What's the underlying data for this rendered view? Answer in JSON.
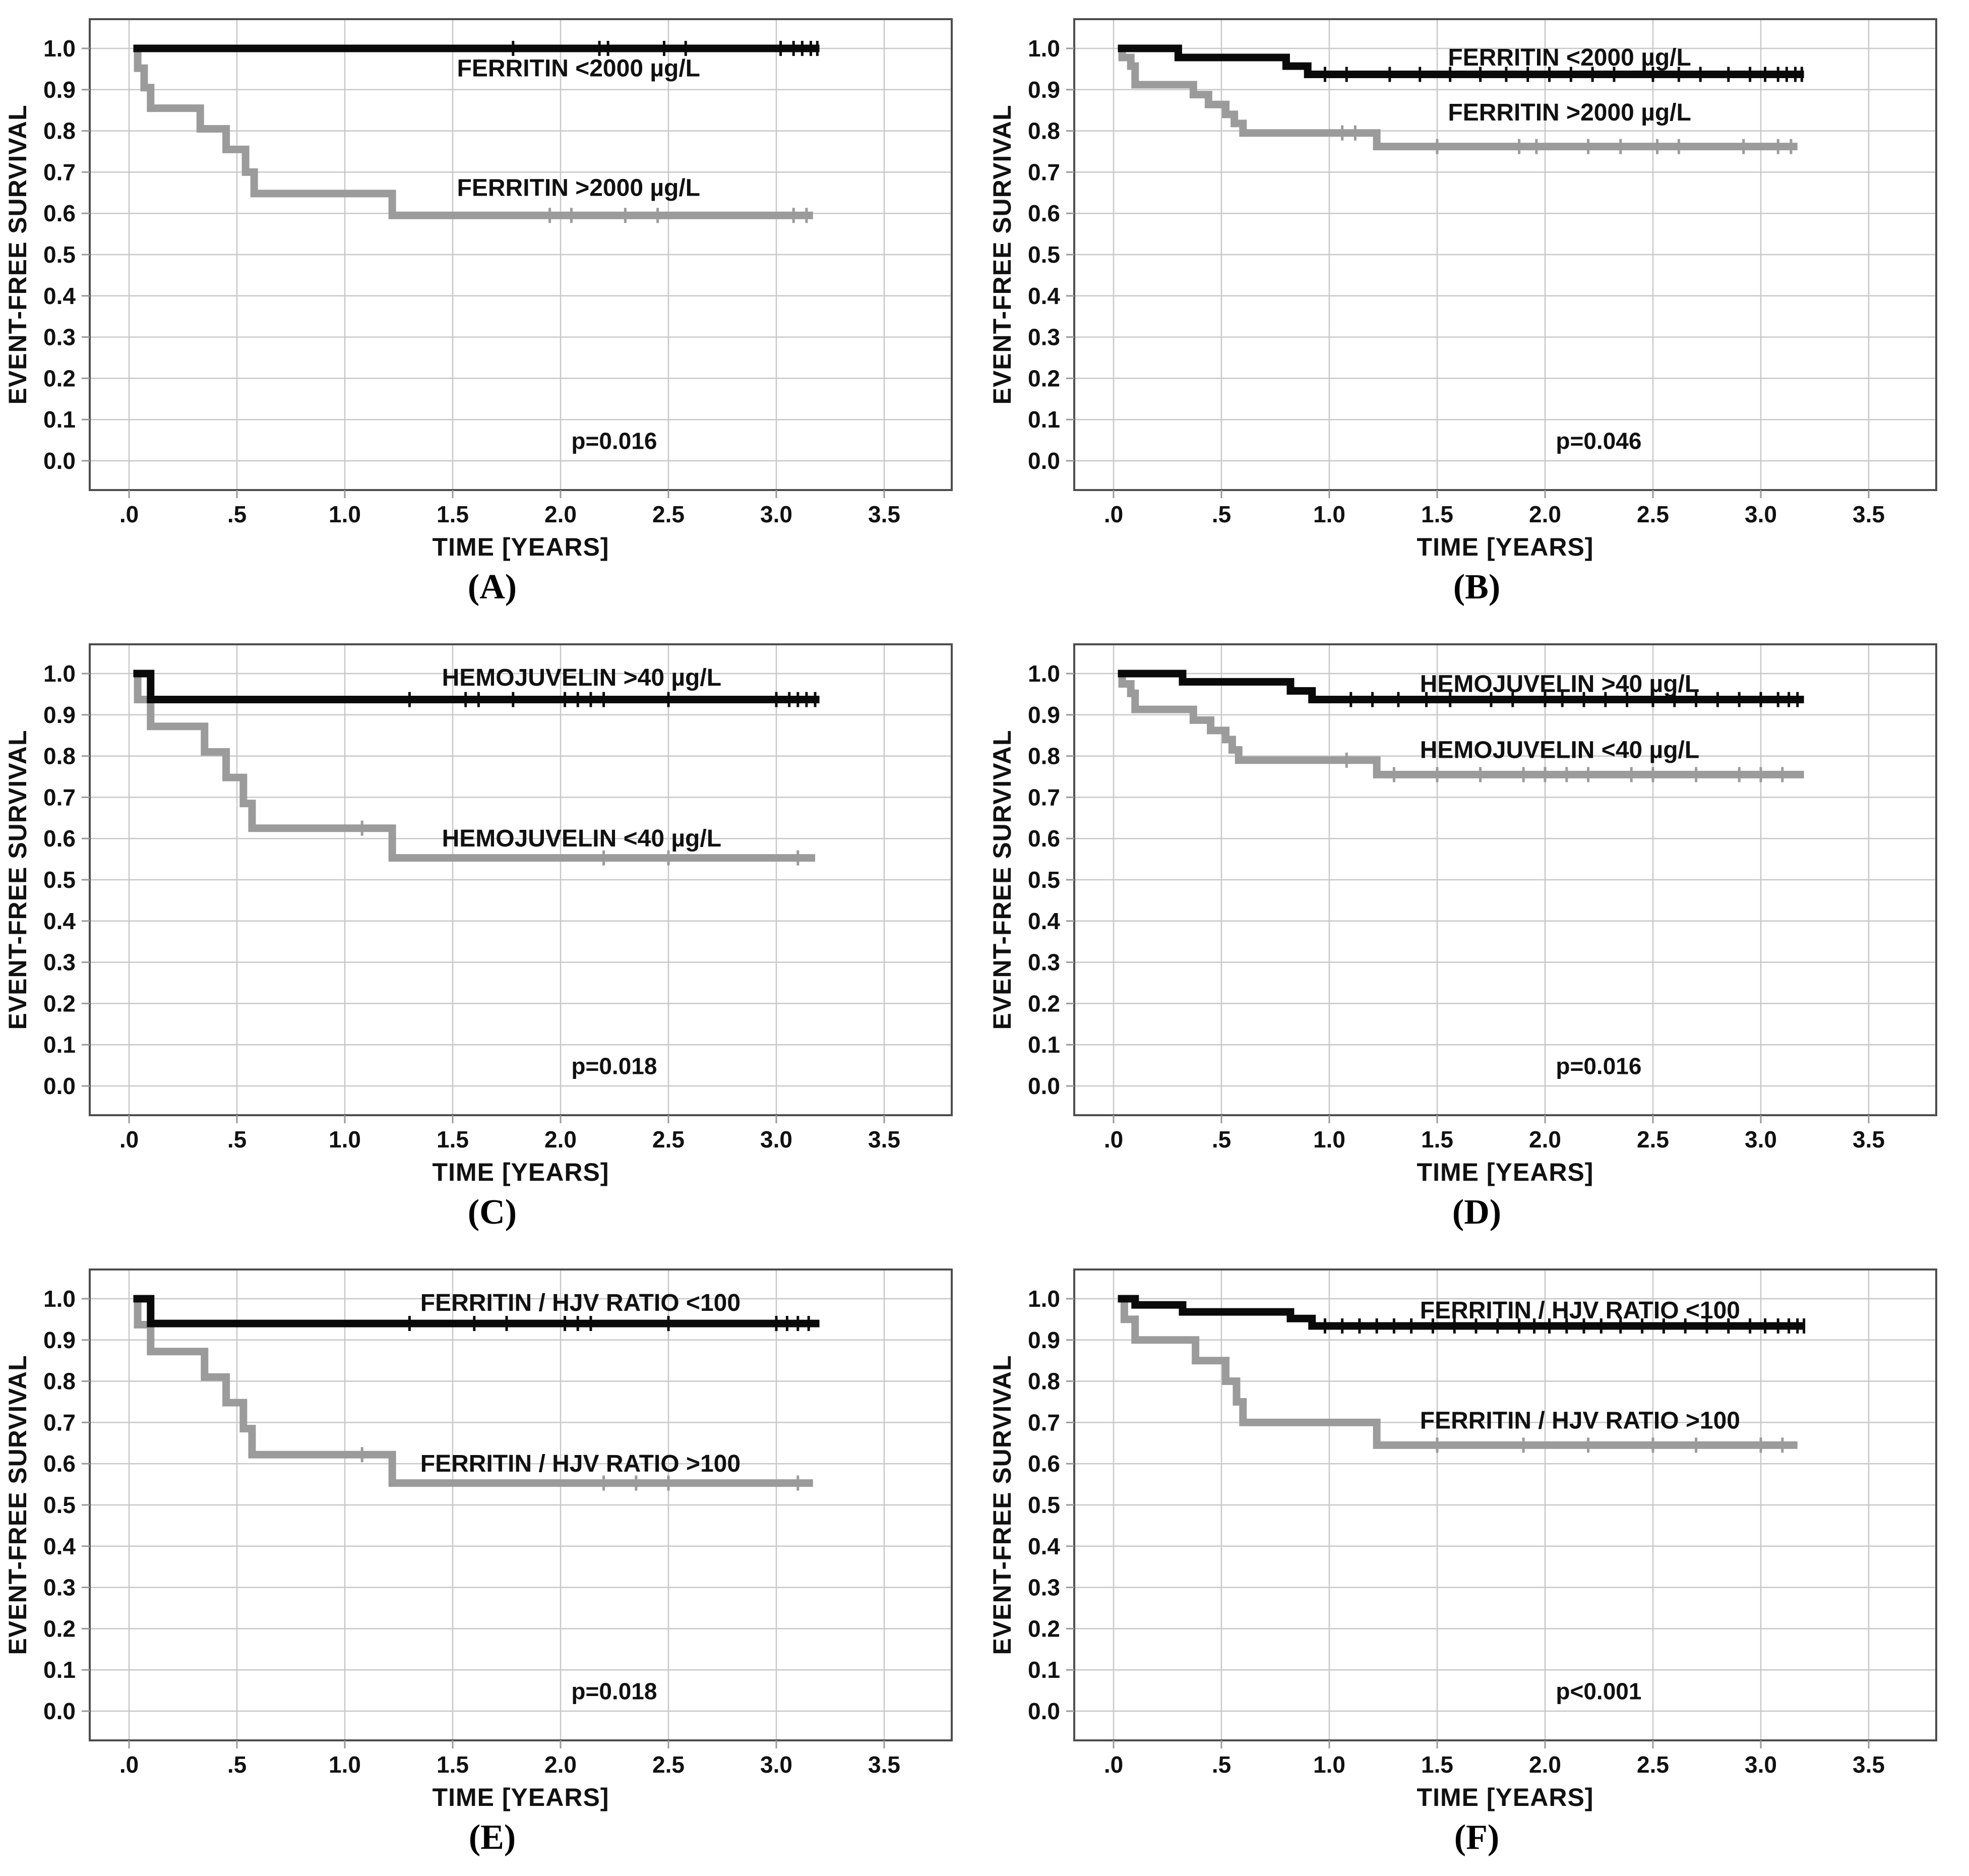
{
  "colors": {
    "black": "#0a0a0a",
    "gray": "#9b9b9b",
    "grid": "#c8c8c8",
    "frame": "#4d4d4d",
    "tick": "#999999",
    "background": "#ffffff"
  },
  "axis": {
    "xlabel": "TIME [YEARS]",
    "ylabel": "EVENT-FREE SURVIVAL",
    "xticks": [
      ".0",
      ".5",
      "1.0",
      "1.5",
      "2.0",
      "2.5",
      "3.0",
      "3.5"
    ],
    "xtick_values": [
      0,
      0.5,
      1.0,
      1.5,
      2.0,
      2.5,
      3.0,
      3.5
    ],
    "yticks": [
      "1.0",
      "0.9",
      "0.8",
      "0.7",
      "0.6",
      "0.5",
      "0.4",
      "0.3",
      "0.2",
      "0.1",
      "0.0"
    ],
    "ytick_values": [
      1.0,
      0.9,
      0.8,
      0.7,
      0.6,
      0.5,
      0.4,
      0.3,
      0.2,
      0.1,
      0.0
    ],
    "xlim": [
      -0.18,
      3.82
    ],
    "ylim": [
      -0.07,
      1.07
    ],
    "grid": true
  },
  "chart_data": [
    {
      "letter": "A",
      "panel_label": "(A)",
      "type": "line",
      "title": "",
      "p_value": "p=0.016",
      "p_pos": [
        2.05,
        0.048
      ],
      "series": [
        {
          "name": "FERRITIN <2000 µg/L",
          "color_key": "black",
          "label_pos": [
            1.52,
            0.952
          ],
          "steps": [
            [
              0.02,
              1.0
            ],
            [
              3.2,
              1.0
            ]
          ],
          "censor_times": [
            1.78,
            2.18,
            2.22,
            2.48,
            2.58,
            3.02,
            3.08,
            3.12,
            3.16,
            3.19
          ]
        },
        {
          "name": "FERRITIN >2000 µg/L",
          "color_key": "gray",
          "label_pos": [
            1.52,
            0.662
          ],
          "steps": [
            [
              0.02,
              1.0
            ],
            [
              0.04,
              0.952
            ],
            [
              0.07,
              0.905
            ],
            [
              0.1,
              0.855
            ],
            [
              0.33,
              0.805
            ],
            [
              0.45,
              0.755
            ],
            [
              0.54,
              0.7
            ],
            [
              0.58,
              0.648
            ],
            [
              1.22,
              0.595
            ],
            [
              3.17,
              0.595
            ]
          ],
          "censor_times": [
            1.95,
            2.05,
            2.3,
            2.45,
            3.08,
            3.14
          ]
        }
      ]
    },
    {
      "letter": "B",
      "panel_label": "(B)",
      "type": "line",
      "title": "",
      "p_value": "p=0.046",
      "p_pos": [
        2.05,
        0.048
      ],
      "series": [
        {
          "name": "FERRITIN <2000 µg/L",
          "color_key": "black",
          "label_pos": [
            1.55,
            0.978
          ],
          "steps": [
            [
              0.02,
              1.0
            ],
            [
              0.3,
              0.978
            ],
            [
              0.8,
              0.957
            ],
            [
              0.9,
              0.937
            ],
            [
              3.2,
              0.937
            ]
          ],
          "censor_times": [
            0.98,
            1.08,
            1.28,
            1.42,
            1.56,
            1.7,
            1.82,
            1.92,
            2.02,
            2.12,
            2.22,
            2.32,
            2.5,
            2.62,
            2.72,
            2.85,
            2.95,
            3.02,
            3.08,
            3.12,
            3.16,
            3.19
          ]
        },
        {
          "name": "FERRITIN >2000 µg/L",
          "color_key": "gray",
          "label_pos": [
            1.55,
            0.845
          ],
          "steps": [
            [
              0.02,
              1.0
            ],
            [
              0.04,
              0.978
            ],
            [
              0.08,
              0.957
            ],
            [
              0.1,
              0.912
            ],
            [
              0.37,
              0.888
            ],
            [
              0.44,
              0.864
            ],
            [
              0.52,
              0.84
            ],
            [
              0.56,
              0.818
            ],
            [
              0.6,
              0.795
            ],
            [
              1.22,
              0.762
            ],
            [
              3.17,
              0.762
            ]
          ],
          "censor_times": [
            1.06,
            1.12,
            1.5,
            1.88,
            1.96,
            2.2,
            2.35,
            2.52,
            2.62,
            2.92,
            3.08,
            3.14
          ]
        }
      ]
    },
    {
      "letter": "C",
      "panel_label": "(C)",
      "type": "line",
      "title": "",
      "p_value": "p=0.018",
      "p_pos": [
        2.05,
        0.048
      ],
      "series": [
        {
          "name": "HEMOJUVELIN >40 µg/L",
          "color_key": "black",
          "label_pos": [
            1.45,
            0.99
          ],
          "steps": [
            [
              0.02,
              1.0
            ],
            [
              0.1,
              0.937
            ],
            [
              3.2,
              0.937
            ]
          ],
          "censor_times": [
            1.3,
            1.56,
            1.62,
            1.78,
            2.02,
            2.08,
            2.14,
            2.2,
            2.5,
            3.0,
            3.06,
            3.1,
            3.14,
            3.18
          ]
        },
        {
          "name": "HEMOJUVELIN <40 µg/L",
          "color_key": "gray",
          "label_pos": [
            1.45,
            0.6
          ],
          "steps": [
            [
              0.02,
              1.0
            ],
            [
              0.04,
              0.937
            ],
            [
              0.1,
              0.872
            ],
            [
              0.35,
              0.81
            ],
            [
              0.45,
              0.748
            ],
            [
              0.53,
              0.685
            ],
            [
              0.57,
              0.625
            ],
            [
              1.22,
              0.553
            ],
            [
              3.18,
              0.553
            ]
          ],
          "censor_times": [
            1.08,
            2.2,
            2.5,
            3.1
          ]
        }
      ]
    },
    {
      "letter": "D",
      "panel_label": "(D)",
      "type": "line",
      "title": "",
      "p_value": "p=0.016",
      "p_pos": [
        2.05,
        0.048
      ],
      "series": [
        {
          "name": "HEMOJUVELIN >40 µg/L",
          "color_key": "black",
          "label_pos": [
            1.42,
            0.975
          ],
          "steps": [
            [
              0.02,
              1.0
            ],
            [
              0.32,
              0.98
            ],
            [
              0.82,
              0.958
            ],
            [
              0.92,
              0.937
            ],
            [
              3.2,
              0.937
            ]
          ],
          "censor_times": [
            1.1,
            1.2,
            1.32,
            1.45,
            1.56,
            1.75,
            1.85,
            2.0,
            2.08,
            2.18,
            2.28,
            2.38,
            2.5,
            2.6,
            2.7,
            2.8,
            2.9,
            3.0,
            3.08,
            3.13,
            3.17
          ]
        },
        {
          "name": "HEMOJUVELIN <40 µg/L",
          "color_key": "gray",
          "label_pos": [
            1.42,
            0.815
          ],
          "steps": [
            [
              0.02,
              1.0
            ],
            [
              0.04,
              0.975
            ],
            [
              0.08,
              0.952
            ],
            [
              0.1,
              0.913
            ],
            [
              0.37,
              0.887
            ],
            [
              0.45,
              0.862
            ],
            [
              0.52,
              0.84
            ],
            [
              0.55,
              0.815
            ],
            [
              0.58,
              0.79
            ],
            [
              1.22,
              0.755
            ],
            [
              3.2,
              0.755
            ]
          ],
          "censor_times": [
            1.08,
            1.3,
            1.5,
            1.7,
            1.9,
            2.0,
            2.1,
            2.2,
            2.4,
            2.5,
            2.7,
            2.9,
            3.0,
            3.1
          ]
        }
      ]
    },
    {
      "letter": "E",
      "panel_label": "(E)",
      "type": "line",
      "title": "",
      "p_value": "p=0.018",
      "p_pos": [
        2.05,
        0.048
      ],
      "series": [
        {
          "name": "FERRITIN / HJV RATIO <100",
          "color_key": "black",
          "label_pos": [
            1.35,
            0.99
          ],
          "steps": [
            [
              0.02,
              1.0
            ],
            [
              0.1,
              0.94
            ],
            [
              3.2,
              0.94
            ]
          ],
          "censor_times": [
            1.3,
            1.6,
            1.75,
            2.02,
            2.08,
            2.14,
            2.5,
            3.0,
            3.05,
            3.1,
            3.15
          ]
        },
        {
          "name": "FERRITIN / HJV RATIO >100",
          "color_key": "gray",
          "label_pos": [
            1.35,
            0.6
          ],
          "steps": [
            [
              0.02,
              1.0
            ],
            [
              0.04,
              0.937
            ],
            [
              0.1,
              0.872
            ],
            [
              0.35,
              0.81
            ],
            [
              0.45,
              0.748
            ],
            [
              0.53,
              0.685
            ],
            [
              0.57,
              0.622
            ],
            [
              1.22,
              0.553
            ],
            [
              3.17,
              0.553
            ]
          ],
          "censor_times": [
            1.08,
            2.2,
            2.35,
            2.5,
            3.1
          ]
        }
      ]
    },
    {
      "letter": "F",
      "panel_label": "(F)",
      "type": "line",
      "title": "",
      "p_value": "p<0.001",
      "p_pos": [
        2.05,
        0.048
      ],
      "series": [
        {
          "name": "FERRITIN / HJV RATIO <100",
          "color_key": "black",
          "label_pos": [
            1.42,
            0.972
          ],
          "steps": [
            [
              0.02,
              1.0
            ],
            [
              0.1,
              0.985
            ],
            [
              0.32,
              0.968
            ],
            [
              0.82,
              0.952
            ],
            [
              0.92,
              0.934
            ],
            [
              3.2,
              0.934
            ]
          ],
          "censor_times": [
            0.98,
            1.06,
            1.14,
            1.22,
            1.3,
            1.38,
            1.48,
            1.58,
            1.68,
            1.78,
            1.88,
            1.95,
            2.02,
            2.1,
            2.18,
            2.26,
            2.35,
            2.45,
            2.55,
            2.65,
            2.75,
            2.85,
            2.95,
            3.02,
            3.08,
            3.13,
            3.17,
            3.2
          ]
        },
        {
          "name": "FERRITIN / HJV RATIO >100",
          "color_key": "gray",
          "label_pos": [
            1.42,
            0.705
          ],
          "steps": [
            [
              0.02,
              1.0
            ],
            [
              0.05,
              0.95
            ],
            [
              0.1,
              0.9
            ],
            [
              0.38,
              0.85
            ],
            [
              0.52,
              0.8
            ],
            [
              0.57,
              0.75
            ],
            [
              0.6,
              0.7
            ],
            [
              1.22,
              0.645
            ],
            [
              3.17,
              0.645
            ]
          ],
          "censor_times": [
            1.5,
            1.9,
            2.2,
            2.5,
            2.7,
            3.0,
            3.1
          ]
        }
      ]
    }
  ]
}
